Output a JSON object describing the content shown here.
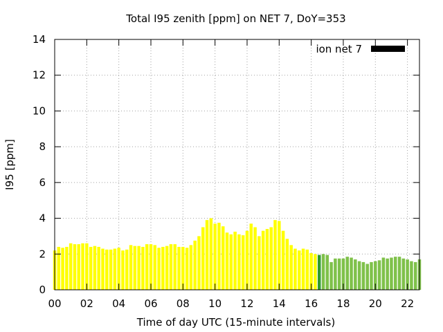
{
  "chart_data": {
    "type": "bar",
    "title": "Total I95 zenith [ppm] on NET 7, DoY=353",
    "xlabel": "Time of day UTC (15-minute intervals)",
    "ylabel": "I95 [ppm]",
    "ylim": [
      0,
      14
    ],
    "xlim": [
      0,
      22.75
    ],
    "yticks": [
      "0",
      "2",
      "4",
      "6",
      "8",
      "10",
      "12",
      "14"
    ],
    "xticks": [
      "00",
      "02",
      "04",
      "06",
      "08",
      "10",
      "12",
      "14",
      "16",
      "18",
      "20",
      "22"
    ],
    "grid": true,
    "legend": {
      "label": "ion net 7",
      "position": "top-right"
    },
    "colors": {
      "yellow": "#ffff00",
      "dark_green": "#2e9b2e",
      "light_green": "#7fc14a"
    },
    "x_interval_hours": 0.25,
    "values": [
      2.2,
      2.4,
      2.35,
      2.4,
      2.6,
      2.55,
      2.55,
      2.6,
      2.6,
      2.4,
      2.45,
      2.4,
      2.3,
      2.25,
      2.25,
      2.3,
      2.35,
      2.2,
      2.25,
      2.5,
      2.45,
      2.45,
      2.4,
      2.55,
      2.55,
      2.5,
      2.35,
      2.4,
      2.45,
      2.55,
      2.55,
      2.4,
      2.4,
      2.35,
      2.5,
      2.75,
      3.0,
      3.5,
      3.9,
      4.0,
      3.7,
      3.75,
      3.55,
      3.2,
      3.1,
      3.25,
      3.1,
      3.05,
      3.3,
      3.7,
      3.5,
      3.0,
      3.3,
      3.4,
      3.5,
      3.9,
      3.85,
      3.3,
      2.85,
      2.5,
      2.3,
      2.2,
      2.3,
      2.25,
      2.05,
      2.0,
      1.95,
      2.0,
      1.95,
      1.55,
      1.75,
      1.75,
      1.75,
      1.85,
      1.8,
      1.7,
      1.6,
      1.55,
      1.45,
      1.55,
      1.6,
      1.65,
      1.8,
      1.75,
      1.8,
      1.85,
      1.85,
      1.75,
      1.7,
      1.6,
      1.55,
      1.7
    ],
    "bar_colors": [
      "yellow",
      "yellow",
      "yellow",
      "yellow",
      "yellow",
      "yellow",
      "yellow",
      "yellow",
      "yellow",
      "yellow",
      "yellow",
      "yellow",
      "yellow",
      "yellow",
      "yellow",
      "yellow",
      "yellow",
      "yellow",
      "yellow",
      "yellow",
      "yellow",
      "yellow",
      "yellow",
      "yellow",
      "yellow",
      "yellow",
      "yellow",
      "yellow",
      "yellow",
      "yellow",
      "yellow",
      "yellow",
      "yellow",
      "yellow",
      "yellow",
      "yellow",
      "yellow",
      "yellow",
      "yellow",
      "yellow",
      "yellow",
      "yellow",
      "yellow",
      "yellow",
      "yellow",
      "yellow",
      "yellow",
      "yellow",
      "yellow",
      "yellow",
      "yellow",
      "yellow",
      "yellow",
      "yellow",
      "yellow",
      "yellow",
      "yellow",
      "yellow",
      "yellow",
      "yellow",
      "yellow",
      "yellow",
      "yellow",
      "yellow",
      "yellow",
      "yellow",
      "dark_green",
      "light_green",
      "light_green",
      "light_green",
      "light_green",
      "light_green",
      "light_green",
      "light_green",
      "light_green",
      "light_green",
      "light_green",
      "light_green",
      "light_green",
      "light_green",
      "light_green",
      "light_green",
      "light_green",
      "light_green",
      "light_green",
      "light_green",
      "light_green",
      "light_green",
      "light_green",
      "light_green",
      "light_green",
      "light_green"
    ]
  }
}
